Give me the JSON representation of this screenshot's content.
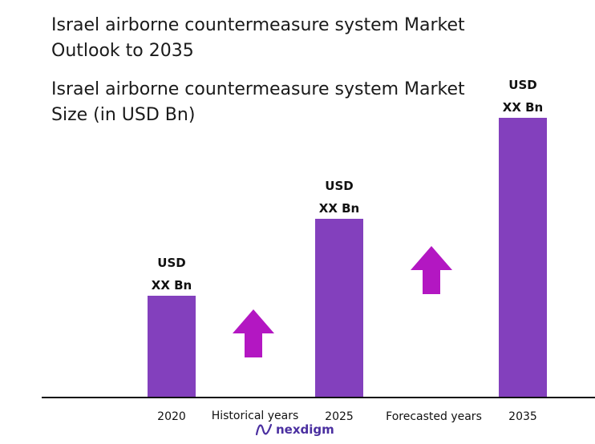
{
  "title": "Israel airborne countermeasure system Market Outlook to 2035",
  "subtitle": "Israel airborne countermeasure system Market Size (in USD Bn)",
  "colors": {
    "bar": "#8340bd",
    "arrow": "#b317c2",
    "axis": "#111111",
    "logo": "#4a2fa0"
  },
  "chart_data": {
    "type": "bar",
    "categories": [
      "2020",
      "2025",
      "2035"
    ],
    "values": [
      126,
      222,
      348
    ],
    "value_labels": [
      [
        "USD",
        "XX Bn"
      ],
      [
        "USD",
        "XX Bn"
      ],
      [
        "USD",
        "XX Bn"
      ]
    ],
    "annotations": [
      "Historical years",
      "Forecasted years"
    ],
    "ylim": [
      0,
      360
    ],
    "grid": false,
    "legend": "none"
  },
  "logo": {
    "text": "nexdigm",
    "icon": "nexdigm-wave-icon"
  }
}
